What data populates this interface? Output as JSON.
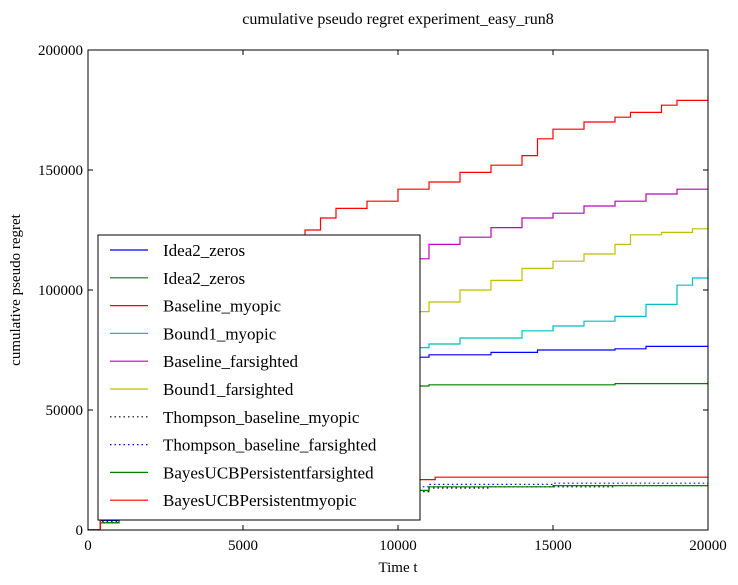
{
  "chart_data": {
    "type": "line",
    "title": "cumulative pseudo regret experiment_easy_run8",
    "xlabel": "Time t",
    "ylabel": "cumulative pseudo regret",
    "xlim": [
      0,
      20000
    ],
    "ylim": [
      0,
      200000
    ],
    "xticks": [
      0,
      5000,
      10000,
      15000,
      20000
    ],
    "yticks": [
      0,
      50000,
      100000,
      150000,
      200000
    ],
    "xtick_labels": [
      "0",
      "5000",
      "10000",
      "15000",
      "20000"
    ],
    "ytick_labels": [
      "0",
      "50000",
      "100000",
      "150000",
      "200000"
    ],
    "grid": false,
    "legend_position": "center-left",
    "series": [
      {
        "name": "Idea2_zeros",
        "color": "#0000ff",
        "dash": "solid",
        "points": [
          [
            0,
            0
          ],
          [
            400,
            4000
          ],
          [
            1000,
            10000
          ],
          [
            2000,
            25000
          ],
          [
            4000,
            45000
          ],
          [
            6000,
            58000
          ],
          [
            8000,
            65000
          ],
          [
            9000,
            70000
          ],
          [
            10000,
            72000
          ],
          [
            11000,
            73000
          ],
          [
            13000,
            74000
          ],
          [
            14500,
            75000
          ],
          [
            17000,
            75500
          ],
          [
            18000,
            76500
          ],
          [
            20000,
            77000
          ]
        ]
      },
      {
        "name": "Idea2_zeros",
        "color": "#008000",
        "dash": "solid",
        "points": [
          [
            0,
            0
          ],
          [
            400,
            3000
          ],
          [
            1000,
            8000
          ],
          [
            2000,
            20000
          ],
          [
            4000,
            38000
          ],
          [
            6000,
            50000
          ],
          [
            8000,
            56000
          ],
          [
            9500,
            59000
          ],
          [
            10000,
            60000
          ],
          [
            11000,
            60500
          ],
          [
            15000,
            60500
          ],
          [
            17000,
            61000
          ],
          [
            19500,
            61000
          ],
          [
            20000,
            62000
          ]
        ]
      },
      {
        "name": "Baseline_myopic",
        "color": "#ff0000",
        "dash": "solid",
        "points": [
          [
            0,
            0
          ],
          [
            400,
            20000
          ],
          [
            1000,
            40000
          ],
          [
            3000,
            80000
          ],
          [
            5000,
            105000
          ],
          [
            6000,
            118000
          ],
          [
            7000,
            125000
          ],
          [
            7500,
            130000
          ],
          [
            8000,
            134000
          ],
          [
            9000,
            137000
          ],
          [
            10000,
            142000
          ],
          [
            11000,
            145000
          ],
          [
            12000,
            149000
          ],
          [
            13000,
            152000
          ],
          [
            14000,
            156000
          ],
          [
            14500,
            163000
          ],
          [
            15000,
            167000
          ],
          [
            16000,
            170000
          ],
          [
            17000,
            172000
          ],
          [
            17500,
            174000
          ],
          [
            18500,
            177000
          ],
          [
            19000,
            179000
          ],
          [
            20000,
            181000
          ]
        ]
      },
      {
        "name": "Bound1_myopic",
        "color": "#00bfbf",
        "dash": "solid",
        "points": [
          [
            0,
            0
          ],
          [
            400,
            5000
          ],
          [
            1000,
            15000
          ],
          [
            3000,
            40000
          ],
          [
            6000,
            62000
          ],
          [
            8000,
            70000
          ],
          [
            9000,
            73000
          ],
          [
            10000,
            76000
          ],
          [
            11000,
            77500
          ],
          [
            12000,
            80000
          ],
          [
            14000,
            83000
          ],
          [
            15000,
            85000
          ],
          [
            16000,
            87000
          ],
          [
            17000,
            89000
          ],
          [
            18000,
            94000
          ],
          [
            19000,
            102000
          ],
          [
            19500,
            105000
          ],
          [
            20000,
            109000
          ]
        ]
      },
      {
        "name": "Baseline_farsighted",
        "color": "#bf00bf",
        "dash": "solid",
        "points": [
          [
            0,
            0
          ],
          [
            400,
            15000
          ],
          [
            1000,
            30000
          ],
          [
            3000,
            65000
          ],
          [
            5000,
            88000
          ],
          [
            7000,
            100000
          ],
          [
            8500,
            108000
          ],
          [
            10000,
            113000
          ],
          [
            11000,
            119000
          ],
          [
            12000,
            122000
          ],
          [
            13000,
            126000
          ],
          [
            14000,
            130000
          ],
          [
            15000,
            132000
          ],
          [
            16000,
            135000
          ],
          [
            17000,
            137000
          ],
          [
            18000,
            140000
          ],
          [
            19000,
            142000
          ],
          [
            20000,
            142500
          ]
        ]
      },
      {
        "name": "Bound1_farsighted",
        "color": "#bfbf00",
        "dash": "solid",
        "points": [
          [
            0,
            0
          ],
          [
            400,
            8000
          ],
          [
            1000,
            20000
          ],
          [
            3000,
            50000
          ],
          [
            6000,
            75000
          ],
          [
            8000,
            85000
          ],
          [
            10000,
            91000
          ],
          [
            11000,
            95000
          ],
          [
            12000,
            100000
          ],
          [
            13000,
            104000
          ],
          [
            14000,
            109000
          ],
          [
            15000,
            112000
          ],
          [
            16000,
            115000
          ],
          [
            17000,
            119000
          ],
          [
            17500,
            123000
          ],
          [
            18500,
            124000
          ],
          [
            19500,
            125500
          ],
          [
            20000,
            127000
          ]
        ]
      },
      {
        "name": "Thompson_baseline_myopic",
        "color": "#000000",
        "dash": "dotted",
        "points": [
          [
            0,
            0
          ],
          [
            400,
            3000
          ],
          [
            1000,
            6000
          ],
          [
            3000,
            10000
          ],
          [
            6000,
            14000
          ],
          [
            9000,
            16000
          ],
          [
            11000,
            17500
          ],
          [
            13000,
            18000
          ],
          [
            17000,
            18500
          ],
          [
            20000,
            18500
          ]
        ]
      },
      {
        "name": "Thompson_baseline_farsighted",
        "color": "#0000ff",
        "dash": "dotted",
        "points": [
          [
            0,
            0
          ],
          [
            400,
            3500
          ],
          [
            1000,
            7000
          ],
          [
            3000,
            12000
          ],
          [
            6000,
            16000
          ],
          [
            9000,
            18000
          ],
          [
            11000,
            19000
          ],
          [
            15000,
            19500
          ],
          [
            20000,
            19500
          ]
        ]
      },
      {
        "name": "BayesUCBPersistentfarsighted",
        "color": "#008000",
        "dash": "solid",
        "points": [
          [
            0,
            0
          ],
          [
            400,
            3000
          ],
          [
            1000,
            6000
          ],
          [
            3000,
            10000
          ],
          [
            6000,
            14000
          ],
          [
            9000,
            16500
          ],
          [
            11000,
            18000
          ],
          [
            15000,
            18500
          ],
          [
            20000,
            19000
          ]
        ]
      },
      {
        "name": "BayesUCBPersistentmyopic",
        "color": "#ff0000",
        "dash": "solid",
        "points": [
          [
            0,
            0
          ],
          [
            400,
            20000
          ],
          [
            1000,
            20500
          ],
          [
            5000,
            21000
          ],
          [
            11000,
            21000
          ],
          [
            11200,
            22000
          ],
          [
            17000,
            22000
          ],
          [
            20000,
            22000
          ]
        ]
      }
    ]
  }
}
